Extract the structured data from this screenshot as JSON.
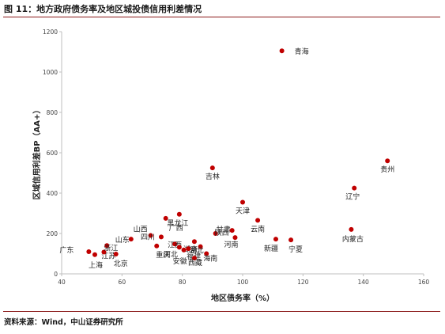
{
  "title": "图 11：地方政府债务率及地区城投债信用利差情况",
  "source": "资料来源：Wind，中山证券研究所",
  "colors": {
    "point": "#c00000",
    "rule": "#8b1a1a",
    "axis": "#bfbfbf"
  },
  "chart_data": {
    "type": "scatter",
    "xlabel": "地区债务率（%）",
    "ylabel": "区域信用利差BP（AA+）",
    "xlim": [
      40,
      160
    ],
    "ylim": [
      0,
      1200
    ],
    "x_ticks": [
      40,
      60,
      80,
      100,
      120,
      140,
      160
    ],
    "y_ticks": [
      0,
      200,
      400,
      600,
      800,
      1000,
      1200
    ],
    "grid": false,
    "points": [
      {
        "label": "青海",
        "x": 113,
        "y": 1105
      },
      {
        "label": "贵州",
        "x": 148,
        "y": 560
      },
      {
        "label": "吉林",
        "x": 90,
        "y": 525
      },
      {
        "label": "辽宁",
        "x": 137,
        "y": 425
      },
      {
        "label": "天津",
        "x": 100,
        "y": 355
      },
      {
        "label": "黑龙江",
        "x": 79,
        "y": 295
      },
      {
        "label": "广西",
        "x": 74.5,
        "y": 275
      },
      {
        "label": "云南",
        "x": 105,
        "y": 265
      },
      {
        "label": "内蒙古",
        "x": 136,
        "y": 220
      },
      {
        "label": "甘肃",
        "x": 96.5,
        "y": 215
      },
      {
        "label": "陕西",
        "x": 91,
        "y": 200
      },
      {
        "label": "山西",
        "x": 69.5,
        "y": 190
      },
      {
        "label": "四川",
        "x": 73,
        "y": 183
      },
      {
        "label": "山东",
        "x": 63,
        "y": 172
      },
      {
        "label": "河南",
        "x": 97.5,
        "y": 180
      },
      {
        "label": "新疆",
        "x": 111,
        "y": 172
      },
      {
        "label": "宁夏",
        "x": 116,
        "y": 168
      },
      {
        "label": "湖南",
        "x": 84,
        "y": 160
      },
      {
        "label": "江西",
        "x": 77.5,
        "y": 148
      },
      {
        "label": "湖北",
        "x": 86,
        "y": 135
      },
      {
        "label": "江苏",
        "x": 55,
        "y": 140
      },
      {
        "label": "重庆",
        "x": 71.5,
        "y": 138
      },
      {
        "label": "河北",
        "x": 79,
        "y": 132
      },
      {
        "label": "福建",
        "x": 82,
        "y": 125
      },
      {
        "label": "安徽",
        "x": 80.5,
        "y": 118
      },
      {
        "label": "浙江",
        "x": 54,
        "y": 108
      },
      {
        "label": "广东",
        "x": 49,
        "y": 110
      },
      {
        "label": "上海",
        "x": 51,
        "y": 95
      },
      {
        "label": "北京",
        "x": 58,
        "y": 98
      },
      {
        "label": "海南",
        "x": 88,
        "y": 100
      },
      {
        "label": "西藏",
        "x": 84,
        "y": 78
      }
    ]
  }
}
